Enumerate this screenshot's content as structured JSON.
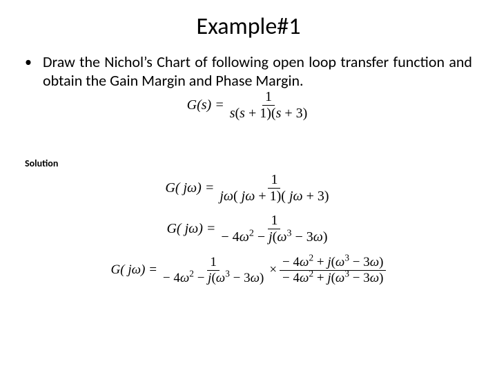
{
  "title": "Example#1",
  "bullet": "Draw the Nichol’s Chart of following open loop transfer function and obtain the Gain Margin and Phase Margin.",
  "solution_label": "Solution",
  "formulas": {
    "eq1": {
      "lhs": "G(s) =",
      "num": "1",
      "den": "s(s + 1)(s + 3)"
    },
    "eq2": {
      "lhs": "G( jω) =",
      "num": "1",
      "den": "jω( jω + 1)( jω + 3)"
    },
    "eq3": {
      "lhs": "G( jω) =",
      "num": "1",
      "den_a": "− 4ω",
      "den_b": " − j(ω",
      "den_c": " − 3ω)"
    },
    "eq4": {
      "lhs": "G( jω) =",
      "f1_num": "1",
      "f1_den_a": "− 4ω",
      "f1_den_b": " − j(ω",
      "f1_den_c": " − 3ω)",
      "times": "×",
      "f2_num_a": "− 4ω",
      "f2_num_b": " + j(ω",
      "f2_num_c": " − 3ω)",
      "f2_den_a": "− 4ω",
      "f2_den_b": " + j(ω",
      "f2_den_c": " − 3ω)"
    }
  },
  "colors": {
    "background": "#ffffff",
    "text": "#000000"
  },
  "fonts": {
    "title_size": 34,
    "body_size": 22,
    "formula_size": 20,
    "solution_size": 14
  }
}
